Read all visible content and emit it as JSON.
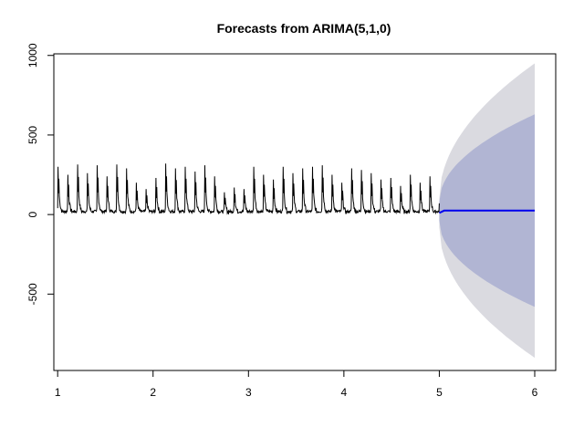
{
  "chart_data": {
    "type": "line",
    "title": "Forecasts from ARIMA(5,1,0)",
    "xlabel": "",
    "ylabel": "",
    "xlim": [
      0.96,
      6.22
    ],
    "ylim": [
      -980,
      1010
    ],
    "x_ticks": [
      1,
      2,
      3,
      4,
      5,
      6
    ],
    "y_ticks": [
      -500,
      0,
      500,
      1000
    ],
    "x_tick_labels": [
      "1",
      "2",
      "3",
      "4",
      "5",
      "6"
    ],
    "y_tick_labels": [
      "-500",
      "0",
      "500",
      "1000"
    ],
    "grid": false,
    "legend": "none",
    "series": [
      {
        "role": "observed",
        "color": "#000000",
        "x_start": 1.0,
        "x_end": 5.0,
        "cycle_peaks": [
          300,
          250,
          315,
          260,
          310,
          240,
          315,
          290,
          200,
          160,
          230,
          320,
          290,
          300,
          270,
          310,
          240,
          140,
          170,
          160,
          300,
          250,
          220,
          300,
          260,
          290,
          300,
          310,
          250,
          200,
          290,
          280,
          260,
          220,
          230,
          180,
          250,
          200,
          240
        ],
        "trough": 10
      },
      {
        "role": "point-forecast",
        "color": "#0000ee",
        "x": [
          5.0,
          5.05,
          6.0
        ],
        "y": [
          10,
          25,
          25
        ]
      }
    ],
    "bands": [
      {
        "role": "95-interval",
        "color": "#dadae0",
        "x": [
          5.0,
          6.0
        ],
        "upper": [
          100,
          950
        ],
        "lower": [
          -80,
          -900
        ]
      },
      {
        "role": "80-interval",
        "color": "#b1b5d3",
        "x": [
          5.0,
          6.0
        ],
        "upper": [
          80,
          630
        ],
        "lower": [
          -40,
          -580
        ]
      }
    ]
  }
}
